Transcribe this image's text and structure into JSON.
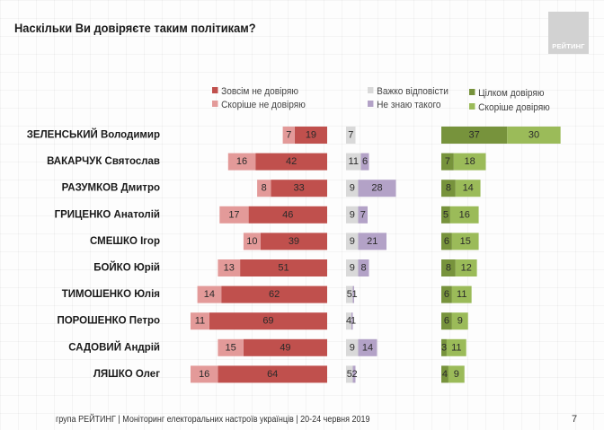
{
  "title": "Наскільки Ви довіряєте таким політикам?",
  "logo_text": "РЕЙТИНГ",
  "footer": "група РЕЙТИНГ | Моніторинг електоральних настроїв українців | 20-24 червня 2019",
  "page_number": "7",
  "colors": {
    "distrust_full": "#c0504d",
    "distrust_rather": "#e39a99",
    "hard_to_say": "#d9d9d9",
    "dont_know": "#b3a2c7",
    "trust_full": "#77933c",
    "trust_rather": "#9bbb59"
  },
  "legend": [
    {
      "key": "distrust_full",
      "label": "Зовсім не довіряю"
    },
    {
      "key": "distrust_rather",
      "label": "Скоріше не довіряю"
    },
    {
      "key": "hard_to_say",
      "label": "Важко відповісти"
    },
    {
      "key": "dont_know",
      "label": "Не знаю такого"
    },
    {
      "key": "trust_full",
      "label": "Цілком довіряю"
    },
    {
      "key": "trust_rather",
      "label": "Скоріше довіряю"
    }
  ],
  "chart_data": {
    "type": "bar",
    "orientation": "horizontal-stacked-diverging",
    "title": "Наскільки Ви довіряєте таким політикам?",
    "unit": "%",
    "categories": [
      "ЗЕЛЕНСЬКИЙ Володимир",
      "ВАКАРЧУК Святослав",
      "РАЗУМКОВ Дмитро",
      "ГРИЦЕНКО Анатолій",
      "СМЕШКО Ігор",
      "БОЙКО Юрій",
      "ТИМОШЕНКО Юлія",
      "ПОРОШЕНКО Петро",
      "САДОВИЙ Андрій",
      "ЛЯШКО Олег"
    ],
    "series": [
      {
        "name": "Скоріше не довіряю",
        "key": "distrust_rather",
        "group": "distrust",
        "values": [
          7,
          16,
          8,
          17,
          10,
          13,
          14,
          11,
          15,
          16
        ]
      },
      {
        "name": "Зовсім не довіряю",
        "key": "distrust_full",
        "group": "distrust",
        "values": [
          19,
          42,
          33,
          46,
          39,
          51,
          62,
          69,
          49,
          64
        ]
      },
      {
        "name": "Важко відповісти",
        "key": "hard_to_say",
        "group": "neutral",
        "values": [
          7,
          11,
          9,
          9,
          9,
          9,
          5,
          4,
          9,
          5
        ]
      },
      {
        "name": "Не знаю такого",
        "key": "dont_know",
        "group": "neutral",
        "values": [
          0,
          6,
          28,
          7,
          21,
          8,
          1,
          1,
          14,
          2
        ]
      },
      {
        "name": "Цілком довіряю",
        "key": "trust_full",
        "group": "trust",
        "values": [
          37,
          7,
          8,
          5,
          6,
          8,
          6,
          6,
          3,
          4
        ]
      },
      {
        "name": "Скоріше довіряю",
        "key": "trust_rather",
        "group": "trust",
        "values": [
          30,
          18,
          14,
          16,
          15,
          12,
          11,
          9,
          11,
          9
        ]
      }
    ],
    "legend_position": "top",
    "grid": false
  }
}
